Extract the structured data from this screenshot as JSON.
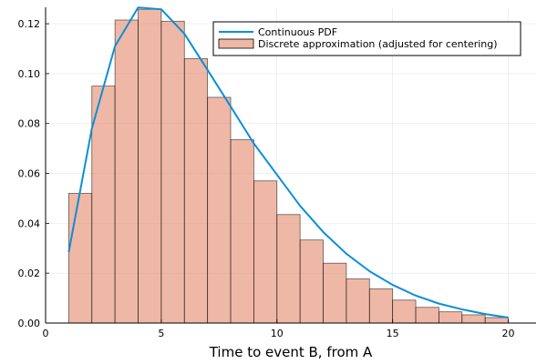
{
  "chart_data": {
    "type": "bar",
    "xlabel": "Time to event B, from A",
    "ylabel": "",
    "title": "",
    "xlim": [
      0,
      21.2
    ],
    "ylim": [
      0,
      0.1266
    ],
    "xticks": [
      0,
      5,
      10,
      15,
      20
    ],
    "xtick_labels": [
      "0",
      "5",
      "10",
      "15",
      "20"
    ],
    "yticks": [
      0.0,
      0.02,
      0.04,
      0.06,
      0.08,
      0.1,
      0.12
    ],
    "ytick_labels": [
      "0.00",
      "0.02",
      "0.04",
      "0.06",
      "0.08",
      "0.10",
      "0.12"
    ],
    "grid": true,
    "legend_position": "top-right",
    "series": [
      {
        "name": "Continuous PDF",
        "kind": "line",
        "color": "#0a8fd9",
        "x": [
          1,
          2,
          3,
          4,
          5,
          6,
          7,
          8,
          9,
          10,
          11,
          12,
          13,
          14,
          15,
          16,
          17,
          18,
          19,
          20
        ],
        "y": [
          0.0285,
          0.078,
          0.111,
          0.1265,
          0.1258,
          0.116,
          0.1015,
          0.0868,
          0.072,
          0.0595,
          0.047,
          0.0365,
          0.0278,
          0.0208,
          0.0153,
          0.011,
          0.0078,
          0.0055,
          0.0036,
          0.0022
        ]
      },
      {
        "name": "Discrete approximation (adjusted for centering)",
        "kind": "bar",
        "color": "#e5886a",
        "bin_edges": [
          1,
          2,
          3,
          4,
          5,
          6,
          7,
          8,
          9,
          10,
          11,
          12,
          13,
          14,
          15,
          16,
          17,
          18,
          19,
          20
        ],
        "values": [
          0.052,
          0.095,
          0.1215,
          0.1258,
          0.121,
          0.106,
          0.0905,
          0.0735,
          0.057,
          0.0435,
          0.0333,
          0.024,
          0.0177,
          0.0137,
          0.0092,
          0.0063,
          0.0045,
          0.0033,
          0.0022
        ]
      }
    ]
  }
}
